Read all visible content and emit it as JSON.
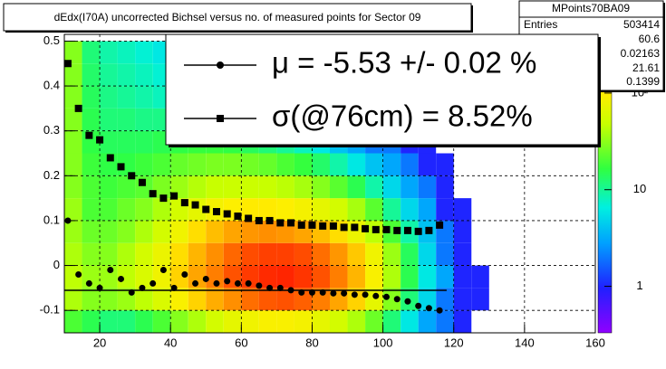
{
  "chart_data": {
    "type": "heatmap",
    "title": "dEdx(I70A) uncorrected Bichsel versus no. of measured points for Sector 09",
    "stats": {
      "name": "MPoints70BA09",
      "entries_label": "Entries",
      "entries": 503414,
      "values": [
        60.6,
        0.02163,
        21.61,
        0.1399
      ]
    },
    "xlim": [
      10,
      160
    ],
    "xticks": [
      20,
      40,
      60,
      80,
      100,
      120,
      140,
      160
    ],
    "ylim": [
      -0.15,
      0.515
    ],
    "yticks": [
      -0.1,
      0,
      0.1,
      0.2,
      0.3,
      0.4,
      0.5
    ],
    "grid": true,
    "zlog": true,
    "zlim": [
      0.33,
      405
    ],
    "zticks": [
      1,
      10,
      {
        "value": 100,
        "label": "10²"
      }
    ],
    "xbins": [
      10,
      15,
      20,
      25,
      30,
      35,
      40,
      45,
      50,
      55,
      60,
      65,
      70,
      75,
      80,
      85,
      90,
      95,
      100,
      105,
      110,
      115,
      120,
      125,
      130
    ],
    "ybins": [
      -0.15,
      -0.1,
      -0.05,
      0,
      0.05,
      0.1,
      0.15,
      0.2,
      0.25,
      0.3,
      0.35,
      0.4,
      0.45,
      0.5
    ],
    "z": [
      [
        20,
        15,
        12,
        12,
        15,
        20,
        30,
        40,
        55,
        70,
        80,
        90,
        90,
        85,
        70,
        55,
        40,
        25,
        12,
        6,
        3,
        2,
        1,
        0
      ],
      [
        40,
        30,
        30,
        35,
        45,
        60,
        90,
        120,
        160,
        200,
        240,
        270,
        280,
        260,
        220,
        170,
        120,
        70,
        30,
        12,
        5,
        2,
        1,
        1
      ],
      [
        45,
        35,
        35,
        45,
        60,
        80,
        120,
        170,
        220,
        280,
        320,
        350,
        360,
        330,
        280,
        220,
        150,
        90,
        40,
        15,
        6,
        3,
        1,
        1
      ],
      [
        40,
        30,
        30,
        40,
        55,
        75,
        110,
        150,
        200,
        250,
        290,
        310,
        310,
        290,
        240,
        190,
        130,
        80,
        35,
        14,
        5,
        2,
        1,
        0
      ],
      [
        35,
        25,
        25,
        30,
        40,
        55,
        80,
        110,
        140,
        170,
        190,
        200,
        190,
        170,
        140,
        110,
        75,
        45,
        20,
        9,
        4,
        2,
        1,
        0
      ],
      [
        35,
        20,
        20,
        25,
        30,
        40,
        55,
        70,
        85,
        95,
        100,
        100,
        95,
        85,
        70,
        55,
        38,
        22,
        10,
        5,
        3,
        1,
        1,
        0
      ],
      [
        30,
        20,
        18,
        20,
        22,
        28,
        35,
        42,
        48,
        50,
        50,
        48,
        44,
        38,
        30,
        22,
        15,
        9,
        5,
        3,
        2,
        1,
        0,
        0
      ],
      [
        30,
        18,
        16,
        16,
        18,
        20,
        24,
        26,
        28,
        28,
        26,
        24,
        20,
        17,
        13,
        9,
        6,
        4,
        3,
        2,
        1,
        1,
        0,
        0
      ],
      [
        30,
        16,
        14,
        14,
        14,
        15,
        16,
        17,
        17,
        16,
        14,
        12,
        10,
        8,
        6,
        4,
        3,
        2,
        2,
        1,
        1,
        0,
        0,
        0
      ],
      [
        30,
        15,
        12,
        12,
        11,
        11,
        11,
        10,
        9,
        8,
        7,
        6,
        5,
        4,
        3,
        2,
        2,
        1,
        1,
        1,
        0,
        0,
        0,
        0
      ],
      [
        30,
        14,
        11,
        10,
        9,
        8,
        7,
        7,
        6,
        5,
        4,
        4,
        3,
        2,
        2,
        1,
        1,
        1,
        1,
        0,
        0,
        0,
        0,
        0
      ],
      [
        30,
        13,
        10,
        9,
        8,
        7,
        6,
        5,
        4,
        4,
        3,
        3,
        2,
        2,
        1,
        1,
        1,
        1,
        0,
        0,
        0,
        0,
        0,
        0
      ],
      [
        30,
        12,
        9,
        8,
        7,
        6,
        5,
        4,
        4,
        3,
        3,
        2,
        2,
        1,
        1,
        1,
        1,
        0,
        0,
        0,
        0,
        0,
        0,
        0
      ]
    ],
    "series": [
      {
        "name": "μ  = -5.53 +/-  0.02 %",
        "marker": "circle",
        "color": "#000000",
        "x": [
          11,
          14,
          17,
          20,
          23,
          26,
          29,
          32,
          35,
          38,
          41,
          44,
          47,
          50,
          53,
          56,
          59,
          62,
          65,
          68,
          71,
          74,
          77,
          80,
          83,
          86,
          89,
          92,
          95,
          98,
          101,
          104,
          107,
          110,
          113,
          116
        ],
        "values": [
          0.1,
          -0.02,
          -0.04,
          -0.05,
          -0.01,
          -0.03,
          -0.06,
          -0.05,
          -0.04,
          -0.01,
          -0.05,
          -0.02,
          -0.04,
          -0.03,
          -0.04,
          -0.035,
          -0.04,
          -0.04,
          -0.045,
          -0.05,
          -0.05,
          -0.055,
          -0.06,
          -0.06,
          -0.06,
          -0.062,
          -0.062,
          -0.065,
          -0.065,
          -0.068,
          -0.07,
          -0.075,
          -0.08,
          -0.09,
          -0.095,
          -0.1
        ]
      },
      {
        "name": "σ(@76cm) =  8.52%",
        "marker": "square",
        "color": "#000000",
        "x": [
          11,
          14,
          17,
          20,
          23,
          26,
          29,
          32,
          35,
          38,
          41,
          44,
          47,
          50,
          53,
          56,
          59,
          62,
          65,
          68,
          71,
          74,
          77,
          80,
          83,
          86,
          89,
          92,
          95,
          98,
          101,
          104,
          107,
          110,
          113,
          116
        ],
        "values": [
          0.45,
          0.35,
          0.29,
          0.28,
          0.24,
          0.22,
          0.2,
          0.185,
          0.16,
          0.15,
          0.155,
          0.14,
          0.135,
          0.125,
          0.12,
          0.115,
          0.11,
          0.105,
          0.1,
          0.1,
          0.095,
          0.095,
          0.09,
          0.09,
          0.088,
          0.088,
          0.085,
          0.085,
          0.082,
          0.08,
          0.08,
          0.078,
          0.078,
          0.076,
          0.078,
          0.09
        ]
      }
    ],
    "fit": {
      "x": [
        10,
        118
      ],
      "values": [
        -0.0553,
        -0.0553
      ],
      "color": "#000000"
    }
  }
}
